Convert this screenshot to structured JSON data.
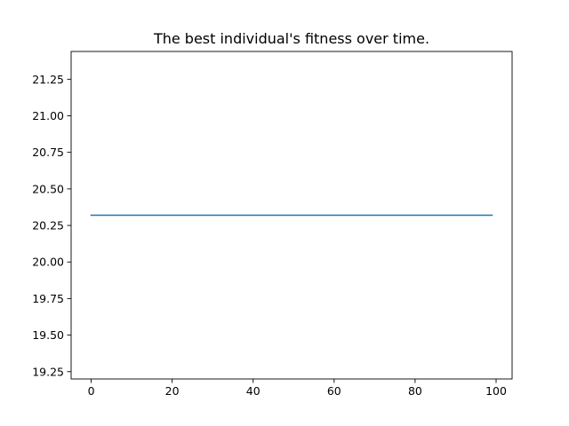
{
  "chart_data": {
    "type": "line",
    "title": "The best individual's fitness over time.",
    "xlabel": "",
    "ylabel": "",
    "xlim": [
      -4.95,
      103.95
    ],
    "ylim": [
      19.2,
      21.44
    ],
    "x_ticks": [
      0,
      20,
      40,
      60,
      80,
      100
    ],
    "y_ticks": [
      19.25,
      19.5,
      19.75,
      20.0,
      20.25,
      20.5,
      20.75,
      21.0,
      21.25
    ],
    "x_tick_labels": [
      "0",
      "20",
      "40",
      "60",
      "80",
      "100"
    ],
    "y_tick_labels": [
      "19.25",
      "19.50",
      "19.75",
      "20.00",
      "20.25",
      "20.50",
      "20.75",
      "21.00",
      "21.25"
    ],
    "grid": false,
    "series": [
      {
        "color": "#1f77b4",
        "x": [
          0,
          99
        ],
        "y": [
          20.32,
          20.32
        ]
      }
    ]
  }
}
